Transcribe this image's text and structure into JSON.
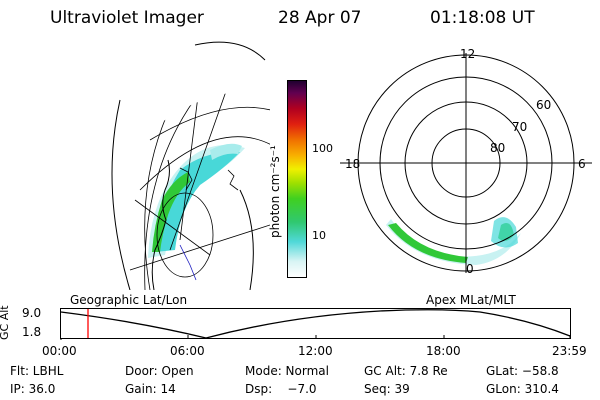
{
  "header": {
    "title": "Ultraviolet Imager",
    "date": "28 Apr 07",
    "time": "01:18:08 UT"
  },
  "colorbar": {
    "label": "photon cm⁻²s⁻¹",
    "ticks": [
      "100",
      "10"
    ]
  },
  "polar_plot": {
    "mlt_labels": {
      "top": "12",
      "left": "18",
      "right": "6",
      "bottom": "0"
    },
    "lat_labels": [
      "60",
      "70",
      "80"
    ]
  },
  "map_labels": {
    "left": "Geographic Lat/Lon",
    "right": "Apex MLat/MLT"
  },
  "timeline": {
    "ylabel": "GC Alt",
    "y_ticks": [
      "9.0",
      "1.8"
    ],
    "x_ticks": [
      "00:00",
      "06:00",
      "12:00",
      "18:00",
      "23:59"
    ]
  },
  "info": {
    "row1": [
      "Flt: LBHL",
      "Door: Open",
      "Mode: Normal",
      "GC Alt: 7.8 Re",
      "GLat: −58.8"
    ],
    "row2": [
      "IP: 36.0",
      "Gain: 14",
      "Dsp:    −7.0",
      "Seq: 39",
      "GLon: 310.4"
    ]
  },
  "colors": {
    "aurora_light": "#b8f0f0",
    "aurora_mid": "#40d8d8",
    "aurora_green": "#30c838",
    "marker": "#ff0000"
  }
}
